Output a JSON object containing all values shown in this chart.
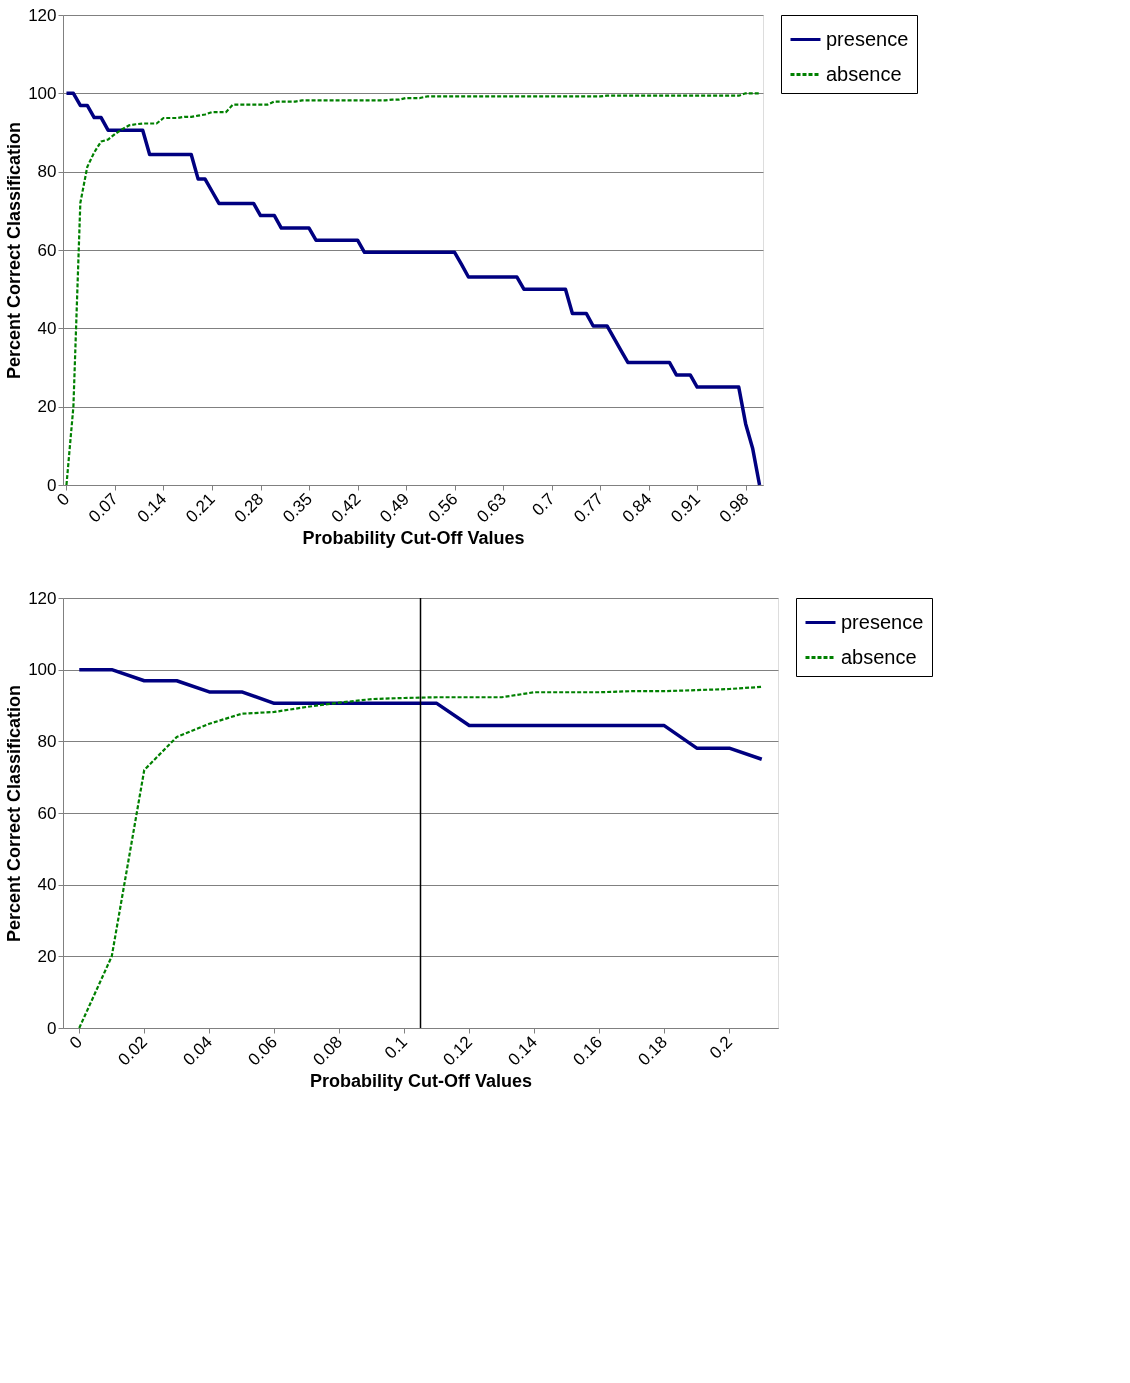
{
  "chart_data": [
    {
      "type": "line",
      "xlabel": "Probability Cut-Off Values",
      "ylabel": "Percent Correct Classification",
      "x": [
        0,
        0.01,
        0.02,
        0.03,
        0.04,
        0.05,
        0.06,
        0.07,
        0.08,
        0.09,
        0.1,
        0.11,
        0.12,
        0.13,
        0.14,
        0.15,
        0.16,
        0.17,
        0.18,
        0.19,
        0.2,
        0.21,
        0.22,
        0.23,
        0.24,
        0.25,
        0.26,
        0.27,
        0.28,
        0.29,
        0.3,
        0.31,
        0.32,
        0.33,
        0.34,
        0.35,
        0.36,
        0.37,
        0.38,
        0.39,
        0.4,
        0.41,
        0.42,
        0.43,
        0.44,
        0.45,
        0.46,
        0.47,
        0.48,
        0.49,
        0.5,
        0.51,
        0.52,
        0.53,
        0.54,
        0.55,
        0.56,
        0.57,
        0.58,
        0.59,
        0.6,
        0.61,
        0.62,
        0.63,
        0.64,
        0.65,
        0.66,
        0.67,
        0.68,
        0.69,
        0.7,
        0.71,
        0.72,
        0.73,
        0.74,
        0.75,
        0.76,
        0.77,
        0.78,
        0.79,
        0.8,
        0.81,
        0.82,
        0.83,
        0.84,
        0.85,
        0.86,
        0.87,
        0.88,
        0.89,
        0.9,
        0.91,
        0.92,
        0.93,
        0.94,
        0.95,
        0.96,
        0.97,
        0.98,
        0.99,
        1
      ],
      "series": [
        {
          "name": "presence",
          "color": "#000080",
          "line_style": "solid",
          "values": [
            100,
            100,
            96.9,
            96.9,
            93.8,
            93.8,
            90.6,
            90.6,
            90.6,
            90.6,
            90.6,
            90.6,
            84.4,
            84.4,
            84.4,
            84.4,
            84.4,
            84.4,
            84.4,
            78.1,
            78.1,
            75,
            71.9,
            71.9,
            71.9,
            71.9,
            71.9,
            71.9,
            68.8,
            68.8,
            68.8,
            65.6,
            65.6,
            65.6,
            65.6,
            65.6,
            62.5,
            62.5,
            62.5,
            62.5,
            62.5,
            62.5,
            62.5,
            59.4,
            59.4,
            59.4,
            59.4,
            59.4,
            59.4,
            59.4,
            59.4,
            59.4,
            59.4,
            59.4,
            59.4,
            59.4,
            59.4,
            56.3,
            53.1,
            53.1,
            53.1,
            53.1,
            53.1,
            53.1,
            53.1,
            53.1,
            50,
            50,
            50,
            50,
            50,
            50,
            50,
            43.8,
            43.8,
            43.8,
            40.6,
            40.6,
            40.6,
            37.5,
            34.4,
            31.3,
            31.3,
            31.3,
            31.3,
            31.3,
            31.3,
            31.3,
            28.1,
            28.1,
            28.1,
            25,
            25,
            25,
            25,
            25,
            25,
            25,
            15.6,
            9.4,
            0
          ]
        },
        {
          "name": "absence",
          "color": "#008000",
          "line_style": "dashed",
          "values": [
            0,
            20,
            72,
            81.2,
            84.9,
            87.7,
            88.2,
            89.6,
            90.8,
            91.8,
            92.1,
            92.3,
            92.3,
            92.3,
            93.7,
            93.7,
            93.7,
            94.0,
            94.0,
            94.3,
            94.6,
            95.2,
            95.2,
            95.2,
            97.1,
            97.1,
            97.1,
            97.1,
            97.1,
            97.1,
            97.9,
            97.9,
            97.9,
            97.9,
            98.2,
            98.2,
            98.2,
            98.2,
            98.2,
            98.2,
            98.2,
            98.2,
            98.2,
            98.2,
            98.2,
            98.2,
            98.2,
            98.4,
            98.4,
            98.8,
            98.8,
            98.8,
            99.2,
            99.2,
            99.2,
            99.2,
            99.2,
            99.2,
            99.2,
            99.2,
            99.2,
            99.2,
            99.2,
            99.2,
            99.2,
            99.2,
            99.2,
            99.2,
            99.2,
            99.2,
            99.2,
            99.2,
            99.2,
            99.2,
            99.2,
            99.2,
            99.2,
            99.2,
            99.4,
            99.4,
            99.4,
            99.4,
            99.4,
            99.4,
            99.4,
            99.4,
            99.4,
            99.4,
            99.4,
            99.4,
            99.4,
            99.4,
            99.4,
            99.4,
            99.4,
            99.4,
            99.4,
            99.4,
            100,
            100,
            100
          ]
        }
      ],
      "xlim": [
        -0.005,
        1.005
      ],
      "xticks": [
        0,
        0.07,
        0.14,
        0.21,
        0.28,
        0.35,
        0.42,
        0.49,
        0.56,
        0.63,
        0.7,
        0.77,
        0.84,
        0.91,
        0.98
      ],
      "ylim": [
        0,
        120
      ],
      "yticks": [
        0,
        20,
        40,
        60,
        80,
        100,
        120
      ],
      "grid": "y",
      "legend": "right"
    },
    {
      "type": "line",
      "xlabel": "Probability Cut-Off Values",
      "ylabel": "Percent Correct Classification",
      "x": [
        0,
        0.01,
        0.02,
        0.03,
        0.04,
        0.05,
        0.06,
        0.07,
        0.08,
        0.09,
        0.1,
        0.11,
        0.12,
        0.13,
        0.14,
        0.15,
        0.16,
        0.17,
        0.18,
        0.19,
        0.2,
        0.21
      ],
      "series": [
        {
          "name": "presence",
          "color": "#000080",
          "line_style": "solid",
          "values": [
            100,
            100,
            96.9,
            96.9,
            93.8,
            93.8,
            90.6,
            90.6,
            90.6,
            90.6,
            90.6,
            90.6,
            84.4,
            84.4,
            84.4,
            84.4,
            84.4,
            84.4,
            84.4,
            78.1,
            78.1,
            75
          ]
        },
        {
          "name": "absence",
          "color": "#008000",
          "line_style": "dashed",
          "values": [
            0,
            20,
            72,
            81.2,
            84.9,
            87.7,
            88.2,
            89.6,
            90.8,
            91.8,
            92.1,
            92.3,
            92.3,
            92.3,
            93.7,
            93.7,
            93.7,
            94.0,
            94.0,
            94.3,
            94.6,
            95.2
          ]
        }
      ],
      "xlim": [
        -0.005,
        0.215
      ],
      "xticks": [
        0,
        0.02,
        0.04,
        0.06,
        0.08,
        0.1,
        0.12,
        0.14,
        0.16,
        0.18,
        0.2
      ],
      "ylim": [
        0,
        120
      ],
      "yticks": [
        0,
        20,
        40,
        60,
        80,
        100,
        120
      ],
      "grid": "y",
      "legend": "right",
      "ref_lines": [
        {
          "axis": "x",
          "value": 0.105,
          "color": "#000000"
        }
      ]
    }
  ]
}
